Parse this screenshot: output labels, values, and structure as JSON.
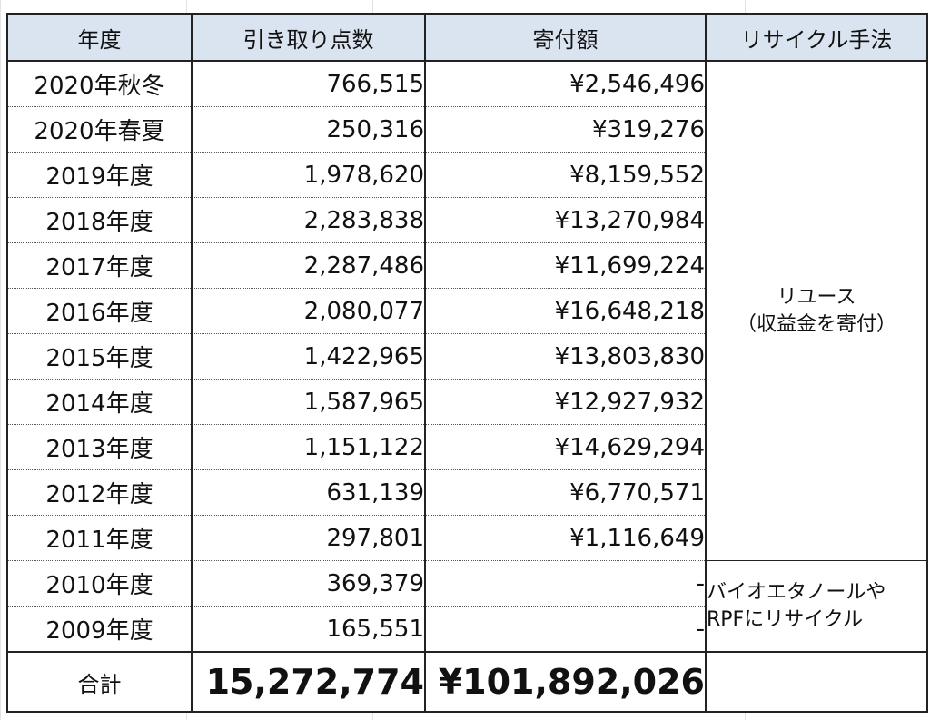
{
  "headers": {
    "year": "年度",
    "count": "引き取り点数",
    "donation": "寄付額",
    "method": "リサイクル手法"
  },
  "rows": [
    {
      "year": "2020年秋冬",
      "count": "766,515",
      "donation": "¥2,546,496"
    },
    {
      "year": "2020年春夏",
      "count": "250,316",
      "donation": "¥319,276"
    },
    {
      "year": "2019年度",
      "count": "1,978,620",
      "donation": "¥8,159,552"
    },
    {
      "year": "2018年度",
      "count": "2,283,838",
      "donation": "¥13,270,984"
    },
    {
      "year": "2017年度",
      "count": "2,287,486",
      "donation": "¥11,699,224"
    },
    {
      "year": "2016年度",
      "count": "2,080,077",
      "donation": "¥16,648,218"
    },
    {
      "year": "2015年度",
      "count": "1,422,965",
      "donation": "¥13,803,830"
    },
    {
      "year": "2014年度",
      "count": "1,587,965",
      "donation": "¥12,927,932"
    },
    {
      "year": "2013年度",
      "count": "1,151,122",
      "donation": "¥14,629,294"
    },
    {
      "year": "2012年度",
      "count": "631,139",
      "donation": "¥6,770,571"
    },
    {
      "year": "2011年度",
      "count": "297,801",
      "donation": "¥1,116,649"
    },
    {
      "year": "2010年度",
      "count": "369,379",
      "donation": "-"
    },
    {
      "year": "2009年度",
      "count": "165,551",
      "donation": "-"
    }
  ],
  "methods": {
    "reuse_line1": "リユース",
    "reuse_line2": "（収益金を寄付）",
    "recycle_line1": "バイオエタノールや",
    "recycle_line2": "RPFにリサイクル"
  },
  "total": {
    "label": "合計",
    "count": "15,272,774",
    "donation": "¥101,892,026"
  }
}
